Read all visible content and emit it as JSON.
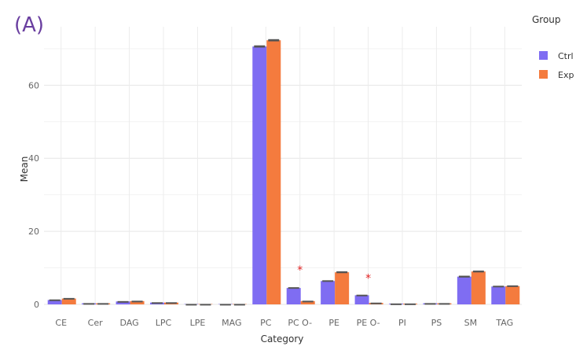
{
  "panel_label": "(A)",
  "chart_data": {
    "type": "bar",
    "title": "",
    "xlabel": "Category",
    "ylabel": "Mean",
    "ylim": [
      0,
      76
    ],
    "yticks": [
      0,
      20,
      40,
      60
    ],
    "grid": true,
    "legend": {
      "title": "Group",
      "position": "right"
    },
    "categories": [
      "CE",
      "Cer",
      "DAG",
      "LPC",
      "LPE",
      "MAG",
      "PC",
      "PC O-",
      "PE",
      "PE O-",
      "PI",
      "PS",
      "SM",
      "TAG"
    ],
    "series": [
      {
        "name": "Ctrl",
        "color": "#7f6df2",
        "values": [
          1.2,
          0.3,
          0.8,
          0.5,
          0.1,
          0.1,
          70.6,
          4.5,
          6.4,
          2.5,
          0.2,
          0.3,
          7.6,
          4.9
        ],
        "errors": [
          0.15,
          0.05,
          0.1,
          0.08,
          0.03,
          0.03,
          0.3,
          0.2,
          0.2,
          0.15,
          0.05,
          0.05,
          0.25,
          0.2
        ]
      },
      {
        "name": "Exp",
        "color": "#f47b3e",
        "values": [
          1.6,
          0.3,
          0.9,
          0.5,
          0.1,
          0.1,
          72.3,
          0.9,
          8.8,
          0.4,
          0.2,
          0.3,
          9.0,
          5.0
        ],
        "errors": [
          0.15,
          0.05,
          0.1,
          0.08,
          0.03,
          0.03,
          0.3,
          0.1,
          0.25,
          0.08,
          0.05,
          0.05,
          0.25,
          0.2
        ]
      }
    ],
    "annotations": [
      {
        "category": "PC O-",
        "text": "*",
        "y": 10.3
      },
      {
        "category": "PE O-",
        "text": "*",
        "y": 8.1
      }
    ]
  }
}
